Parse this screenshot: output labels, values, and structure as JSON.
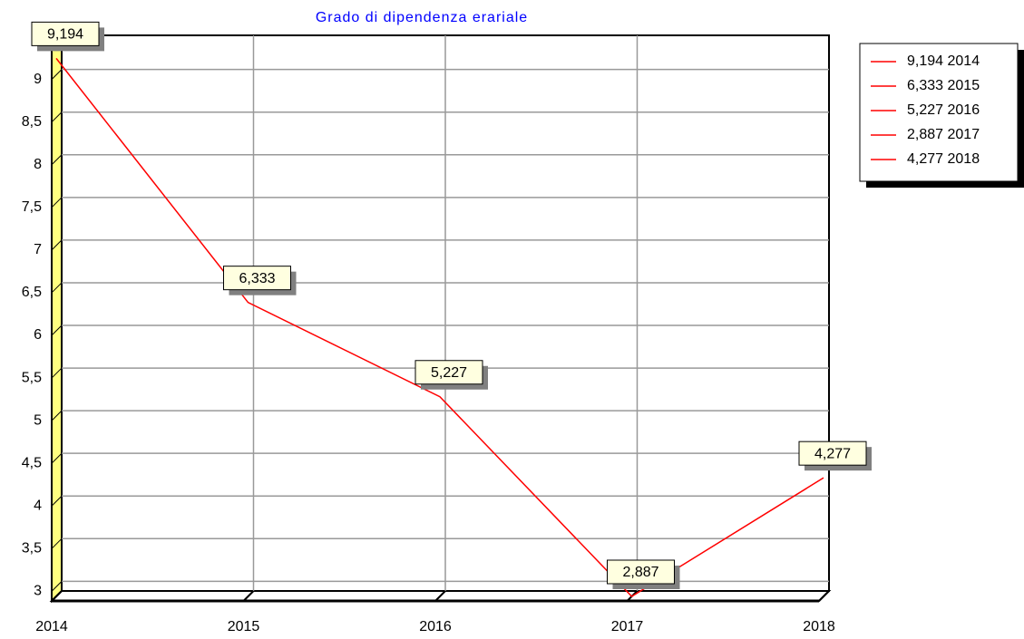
{
  "chart_data": {
    "type": "line",
    "title": "Grado di dipendenza erariale",
    "categories": [
      "2014",
      "2015",
      "2016",
      "2017",
      "2018"
    ],
    "series": [
      {
        "name": "Grado di dipendenza erariale",
        "color": "#ff0000",
        "values": [
          9.194,
          6.333,
          5.227,
          2.887,
          4.277
        ],
        "value_labels": [
          "9,194",
          "6,333",
          "5,227",
          "2,887",
          "4,277"
        ]
      }
    ],
    "ylim": [
      2.887,
      9.4
    ],
    "yticks": [
      3,
      {
        "value": 3.5,
        "label": "3,5"
      },
      4,
      {
        "value": 4.5,
        "label": "4,5"
      },
      5,
      {
        "value": 5.5,
        "label": "5,5"
      },
      6,
      {
        "value": 6.5,
        "label": "6,5"
      },
      7,
      {
        "value": 7.5,
        "label": "7,5"
      },
      8,
      {
        "value": 8.5,
        "label": "8,5"
      },
      9
    ],
    "grid": true,
    "legend": "right"
  }
}
